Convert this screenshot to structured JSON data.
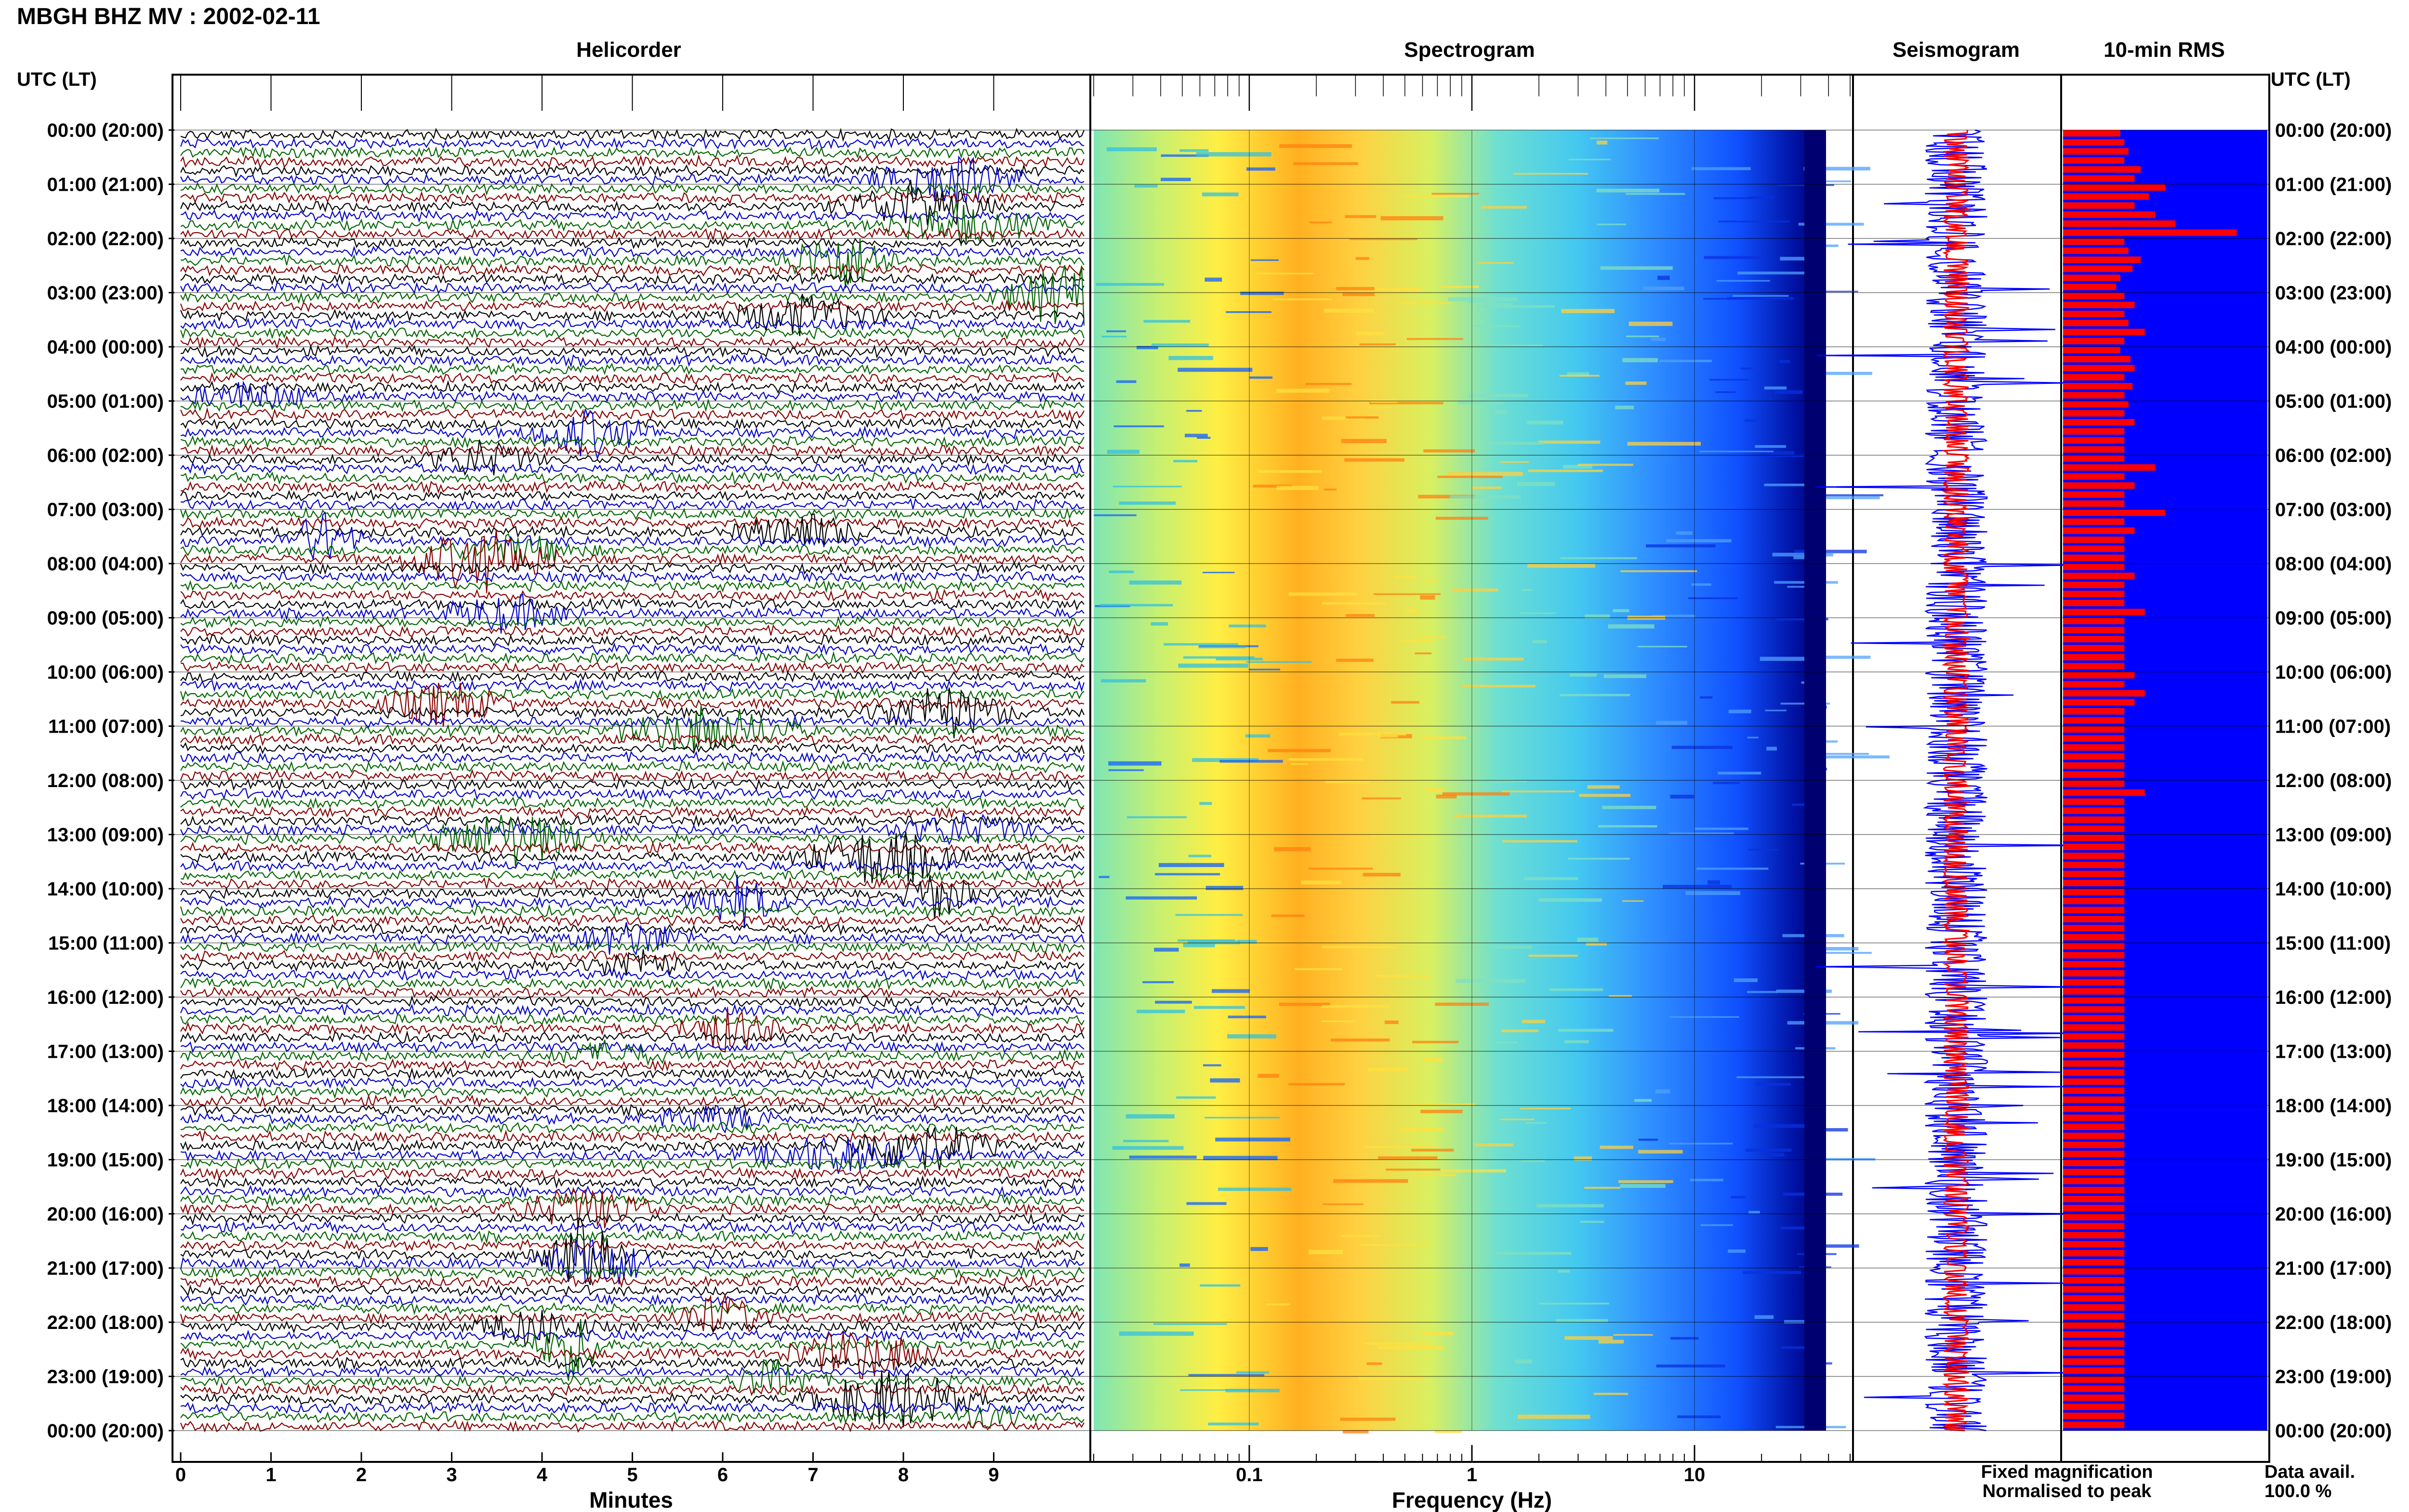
{
  "header": {
    "station_title": "MBGH BHZ MV : 2002-02-11",
    "left_axis_label": "UTC (LT)",
    "right_axis_label": "UTC (LT)"
  },
  "panels": {
    "helicorder_title": "Helicorder",
    "spectrogram_title": "Spectrogram",
    "seismogram_title": "Seismogram",
    "rms_title": "10-min RMS"
  },
  "axes": {
    "minutes_label": "Minutes",
    "frequency_label": "Frequency (Hz)"
  },
  "legend": {
    "fixed_label": "Fixed magnification",
    "fixed_color": "#1a1aff",
    "normalised_label": "Normalised to peak",
    "normalised_color": "#ff1a1a",
    "data_avail_label": "Data avail.",
    "data_avail_value": "100.0 %"
  },
  "colors": {
    "trace_cycle": [
      "#000000",
      "#0000cc",
      "#006600",
      "#880000"
    ],
    "rms_fill": "#0000ff",
    "rms_bar": "#ff0000",
    "seis_fixed": "#0000ff",
    "seis_norm": "#ff0000"
  },
  "chart_data": [
    {
      "type": "line",
      "title": "Helicorder",
      "xlabel": "Minutes",
      "x_ticks": [
        "0",
        "1",
        "2",
        "3",
        "4",
        "5",
        "6",
        "7",
        "8",
        "9"
      ],
      "xlim": [
        0,
        10
      ],
      "hour_labels_utc_lt": [
        "00:00 (20:00)",
        "01:00 (21:00)",
        "02:00 (22:00)",
        "03:00 (23:00)",
        "04:00 (00:00)",
        "05:00 (01:00)",
        "06:00 (02:00)",
        "07:00 (03:00)",
        "08:00 (04:00)",
        "09:00 (05:00)",
        "10:00 (06:00)",
        "11:00 (07:00)",
        "12:00 (08:00)",
        "13:00 (09:00)",
        "14:00 (10:00)",
        "15:00 (11:00)",
        "16:00 (12:00)",
        "17:00 (13:00)",
        "18:00 (14:00)",
        "19:00 (15:00)",
        "20:00 (16:00)",
        "21:00 (17:00)",
        "22:00 (18:00)",
        "23:00 (19:00)",
        "00:00 (20:00)"
      ],
      "lines_per_hour": 6
    },
    {
      "type": "heatmap",
      "title": "Spectrogram",
      "xlabel": "Frequency (Hz)",
      "x_scale": "log",
      "x_ticks": [
        "0.1",
        "1",
        "10"
      ],
      "xlim": [
        0.02,
        50
      ],
      "peak_band_hz": [
        0.2,
        0.6
      ],
      "colormap": "jet"
    },
    {
      "type": "line",
      "title": "Seismogram",
      "series": [
        {
          "name": "Fixed magnification"
        },
        {
          "name": "Normalised to peak"
        }
      ]
    },
    {
      "type": "bar",
      "title": "10-min RMS",
      "orientation": "horizontal",
      "values": [
        0.28,
        0.3,
        0.32,
        0.3,
        0.38,
        0.35,
        0.5,
        0.42,
        0.35,
        0.45,
        0.55,
        0.85,
        0.3,
        0.32,
        0.38,
        0.34,
        0.28,
        0.26,
        0.3,
        0.35,
        0.3,
        0.32,
        0.4,
        0.3,
        0.28,
        0.33,
        0.35,
        0.3,
        0.34,
        0.3,
        0.32,
        0.3,
        0.35,
        0.3,
        0.3,
        0.3,
        0.3,
        0.45,
        0.3,
        0.35,
        0.3,
        0.3,
        0.5,
        0.3,
        0.35,
        0.3,
        0.3,
        0.3,
        0.3,
        0.35,
        0.3,
        0.3,
        0.3,
        0.4,
        0.3,
        0.3,
        0.3,
        0.3,
        0.3,
        0.3,
        0.35,
        0.3,
        0.4,
        0.35,
        0.3,
        0.3,
        0.3,
        0.3,
        0.3,
        0.3,
        0.3,
        0.3,
        0.3,
        0.4,
        0.3,
        0.3,
        0.3,
        0.3,
        0.3,
        0.3,
        0.3,
        0.3,
        0.3,
        0.3,
        0.3,
        0.3,
        0.3,
        0.3,
        0.3,
        0.3,
        0.3,
        0.3,
        0.3,
        0.3,
        0.3,
        0.3,
        0.3,
        0.3,
        0.3,
        0.3,
        0.3,
        0.3,
        0.3,
        0.3,
        0.3,
        0.3,
        0.3,
        0.3,
        0.3,
        0.3,
        0.3,
        0.3,
        0.3,
        0.3,
        0.3,
        0.3,
        0.3,
        0.3,
        0.3,
        0.3,
        0.3,
        0.3,
        0.3,
        0.3,
        0.3,
        0.3,
        0.3,
        0.3,
        0.3,
        0.3,
        0.3,
        0.3,
        0.3,
        0.3,
        0.3,
        0.3,
        0.3,
        0.3,
        0.3,
        0.3,
        0.3,
        0.3,
        0.3,
        0.3
      ],
      "xlim": [
        0,
        1
      ]
    }
  ]
}
